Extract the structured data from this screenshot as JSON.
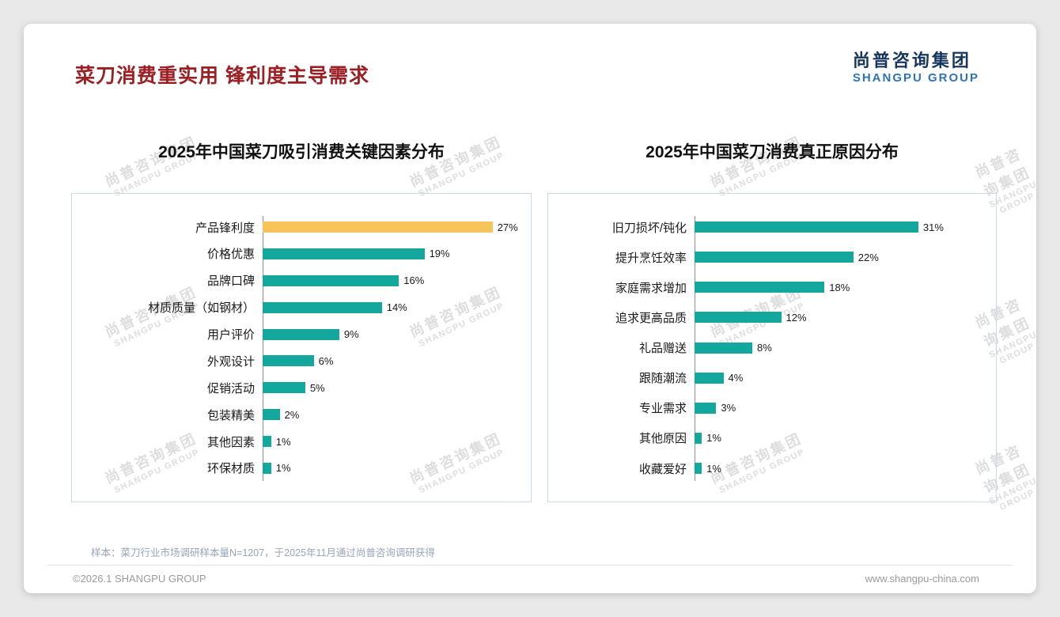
{
  "page": {
    "title": "菜刀消费重实用 锋利度主导需求",
    "footer_note": "样本：菜刀行业市场调研样本量N=1207，于2025年11月通过尚普咨询调研获得",
    "copyright": "©2026.1 SHANGPU GROUP",
    "website": "www.shangpu-china.com"
  },
  "logo": {
    "cn": "尚普咨询集团",
    "en": "SHANGPU GROUP"
  },
  "watermark": {
    "line1": "尚普咨询集团",
    "line2": "SHANGPU GROUP"
  },
  "colors": {
    "title_red": "#9b1f23",
    "teal": "#14a79d",
    "highlight_yellow": "#f7c45c",
    "logo_navy": "#17365d",
    "logo_blue": "#2e74b5",
    "box_border": "#ccd9ea"
  },
  "chart_data": [
    {
      "type": "bar",
      "orientation": "horizontal",
      "title": "2025年中国菜刀吸引消费关键因素分布",
      "categories": [
        "产品锋利度",
        "价格优惠",
        "品牌口碑",
        "材质质量（如钢材）",
        "用户评价",
        "外观设计",
        "促销活动",
        "包装精美",
        "其他因素",
        "环保材质"
      ],
      "values": [
        27,
        19,
        16,
        14,
        9,
        6,
        5,
        2,
        1,
        1
      ],
      "value_labels": [
        "27%",
        "19%",
        "16%",
        "14%",
        "9%",
        "6%",
        "5%",
        "2%",
        "1%",
        "1%"
      ],
      "bar_color": "#14a79d",
      "highlight": {
        "index": 0,
        "color": "#f7c45c"
      },
      "xlim": [
        0,
        30
      ],
      "grid": false,
      "legend": "none"
    },
    {
      "type": "bar",
      "orientation": "horizontal",
      "title": "2025年中国菜刀消费真正原因分布",
      "categories": [
        "旧刀损坏/钝化",
        "提升烹饪效率",
        "家庭需求增加",
        "追求更高品质",
        "礼品赠送",
        "跟随潮流",
        "专业需求",
        "其他原因",
        "收藏爱好"
      ],
      "values": [
        31,
        22,
        18,
        12,
        8,
        4,
        3,
        1,
        1
      ],
      "value_labels": [
        "31%",
        "22%",
        "18%",
        "12%",
        "8%",
        "4%",
        "3%",
        "1%",
        "1%"
      ],
      "bar_color": "#14a79d",
      "highlight": null,
      "xlim": [
        0,
        40
      ],
      "grid": false,
      "legend": "none"
    }
  ]
}
